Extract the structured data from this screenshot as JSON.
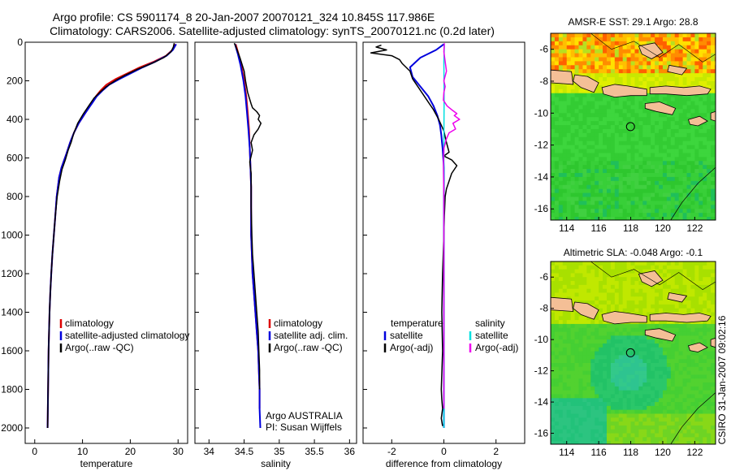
{
  "header": {
    "line1": "Argo profile: CS 5901174_8 20-Jan-2007 20070121_324 10.845S 117.986E",
    "line2": "Climatology: CARS2006. Satellite-adjusted climatology: synTS_20070121.nc (0.2d later)"
  },
  "side_text": "CSIRO 31-Jan-2007 09:02:16",
  "colors": {
    "climatology": "#dd0000",
    "satellite": "#0000dd",
    "argo": "#000000",
    "satellite_sal": "#00e0e0",
    "argo_sal_adj": "#ee00ee",
    "land": "#f4bf96"
  },
  "chart_data": [
    {
      "id": "temperature",
      "type": "line",
      "xlabel": "temperature",
      "ylabel": "",
      "xlim": [
        -2,
        32
      ],
      "ylim": [
        2080,
        0
      ],
      "y_reversed": true,
      "xticks": [
        0,
        10,
        20,
        30
      ],
      "yticks": [
        0,
        200,
        400,
        600,
        800,
        1000,
        1200,
        1400,
        1600,
        1800,
        2000
      ],
      "legend": {
        "placement": "lower-right",
        "entries": [
          {
            "label": "climatology",
            "series": "climatology"
          },
          {
            "label": "satellite-adjusted climatology",
            "series": "satellite-adjusted"
          },
          {
            "label": "Argo(..raw -QC)",
            "series": "argo"
          }
        ]
      },
      "series": [
        {
          "name": "climatology",
          "color_key": "climatology",
          "width": 2,
          "x": [
            29.5,
            28.8,
            27.5,
            25,
            22,
            19.5,
            17,
            15,
            13.8,
            12.8,
            11.8,
            10.5,
            9.2,
            8.2,
            7.4,
            6.6,
            5.6,
            5.1,
            4.6,
            4.3,
            4.0,
            3.7,
            3.45,
            3.25,
            3.1,
            3.0,
            2.9,
            2.85,
            2.8,
            2.75,
            2.7
          ],
          "y": [
            10,
            40,
            70,
            100,
            130,
            160,
            190,
            220,
            250,
            280,
            320,
            370,
            420,
            470,
            520,
            580,
            650,
            700,
            800,
            900,
            1000,
            1100,
            1200,
            1300,
            1400,
            1500,
            1600,
            1700,
            1800,
            1900,
            2000
          ]
        },
        {
          "name": "satellite-adjusted",
          "color_key": "satellite",
          "width": 2,
          "x": [
            29.6,
            28.9,
            27.6,
            25.3,
            22.6,
            20.2,
            17.8,
            15.6,
            14.2,
            13.0,
            11.9,
            10.5,
            9.2,
            8.2,
            7.4,
            6.6,
            5.6,
            5.1,
            4.6,
            4.3,
            4.0,
            3.7,
            3.45,
            3.25,
            3.1,
            3.0,
            2.9,
            2.85,
            2.8,
            2.75,
            2.7
          ],
          "y": [
            10,
            40,
            70,
            100,
            130,
            160,
            190,
            220,
            250,
            280,
            320,
            370,
            420,
            470,
            520,
            580,
            650,
            700,
            800,
            900,
            1000,
            1100,
            1200,
            1300,
            1400,
            1500,
            1600,
            1700,
            1800,
            1900,
            2000
          ]
        },
        {
          "name": "Argo(..raw -QC)",
          "color_key": "argo",
          "width": 1.5,
          "x": [
            29.2,
            29.0,
            28.5,
            27.0,
            24.5,
            21.5,
            19.0,
            16.8,
            15.0,
            13.6,
            12.4,
            11.3,
            10.2,
            9.0,
            8.2,
            7.6,
            7.0,
            6.4,
            5.7,
            5.2,
            4.7,
            4.3,
            4.0,
            3.7,
            3.45,
            3.25,
            3.1,
            3.0,
            2.9,
            2.85,
            2.8,
            2.75,
            2.7
          ],
          "y": [
            5,
            25,
            50,
            80,
            110,
            140,
            170,
            200,
            230,
            260,
            290,
            330,
            370,
            420,
            470,
            520,
            560,
            610,
            660,
            720,
            800,
            900,
            1000,
            1100,
            1200,
            1300,
            1400,
            1500,
            1600,
            1700,
            1800,
            1900,
            2000
          ]
        }
      ]
    },
    {
      "id": "salinity",
      "type": "line",
      "xlabel": "salinity",
      "ylabel": "",
      "xlim": [
        33.8,
        36.1
      ],
      "ylim": [
        2080,
        0
      ],
      "y_reversed": true,
      "xticks": [
        34,
        34.5,
        35,
        35.5,
        36
      ],
      "yticks": [
        0,
        200,
        400,
        600,
        800,
        1000,
        1200,
        1400,
        1600,
        1800,
        2000
      ],
      "legend": {
        "placement": "lower-right",
        "entries": [
          {
            "label": "climatology",
            "series": "climatology"
          },
          {
            "label": "satellite adj. clim.",
            "series": "satellite-adjusted"
          },
          {
            "label": "Argo(..raw -QC)",
            "series": "argo"
          }
        ]
      },
      "annotations": [
        "Argo AUSTRALIA",
        "PI: Susan Wijffels"
      ],
      "series": [
        {
          "name": "climatology",
          "color_key": "climatology",
          "width": 2,
          "x": [
            34.38,
            34.42,
            34.46,
            34.5,
            34.53,
            34.55,
            34.57,
            34.58,
            34.59,
            34.6,
            34.6,
            34.6,
            34.61,
            34.62,
            34.64,
            34.66,
            34.68,
            34.7,
            34.71,
            34.72,
            34.72
          ],
          "y": [
            10,
            60,
            120,
            200,
            280,
            360,
            450,
            550,
            650,
            750,
            850,
            1000,
            1100,
            1200,
            1300,
            1400,
            1500,
            1600,
            1700,
            1800,
            1900
          ]
        },
        {
          "name": "satellite-adjusted",
          "color_key": "satellite",
          "width": 2,
          "x": [
            34.37,
            34.41,
            34.45,
            34.49,
            34.52,
            34.54,
            34.56,
            34.58,
            34.59,
            34.6,
            34.6,
            34.6,
            34.61,
            34.62,
            34.64,
            34.66,
            34.68,
            34.7,
            34.71,
            34.72,
            34.72,
            34.73
          ],
          "y": [
            10,
            60,
            120,
            200,
            280,
            360,
            450,
            550,
            650,
            750,
            850,
            1000,
            1100,
            1200,
            1300,
            1400,
            1500,
            1600,
            1700,
            1800,
            1900,
            2000
          ]
        },
        {
          "name": "Argo(..raw -QC)",
          "color_key": "argo",
          "width": 1.5,
          "x": [
            34.36,
            34.4,
            34.44,
            34.5,
            34.52,
            34.55,
            34.6,
            34.62,
            34.68,
            34.72,
            34.7,
            34.74,
            34.7,
            34.64,
            34.6,
            34.62,
            34.58,
            34.6,
            34.6,
            34.6,
            34.61,
            34.62,
            34.64,
            34.66,
            34.68,
            34.7,
            34.71,
            34.72,
            34.72
          ],
          "y": [
            5,
            40,
            80,
            150,
            200,
            260,
            320,
            340,
            360,
            380,
            400,
            420,
            450,
            480,
            520,
            560,
            620,
            680,
            750,
            850,
            1000,
            1100,
            1200,
            1300,
            1400,
            1500,
            1600,
            1700,
            1800
          ]
        }
      ]
    },
    {
      "id": "difference",
      "type": "line",
      "xlabel": "difference from climatology",
      "ylabel": "",
      "xlim": [
        -3.1,
        3.1
      ],
      "ylim": [
        2080,
        0
      ],
      "y_reversed": true,
      "xticks": [
        -2,
        0,
        2
      ],
      "yticks": [
        0,
        200,
        400,
        600,
        800,
        1000,
        1200,
        1400,
        1600,
        1800,
        2000
      ],
      "legend": {
        "placement": "lower-center",
        "columns": [
          {
            "heading": "temperature",
            "entries": [
              {
                "label": "satellite",
                "series": "T satellite"
              },
              {
                "label": "Argo(-adj)",
                "series": "T Argo(-adj)"
              }
            ]
          },
          {
            "heading": "salinity",
            "entries": [
              {
                "label": "satellite",
                "series": "S satellite"
              },
              {
                "label": "Argo(-adj)",
                "series": "S Argo(-adj)"
              }
            ]
          }
        ]
      },
      "series": [
        {
          "name": "T satellite",
          "color_key": "satellite",
          "width": 2,
          "x": [
            0.0,
            -0.3,
            -0.9,
            -1.3,
            -1.2,
            -0.9,
            -0.6,
            -0.4,
            -0.25,
            -0.15,
            -0.1,
            -0.05,
            0,
            0,
            0,
            0
          ],
          "y": [
            10,
            40,
            80,
            130,
            180,
            230,
            280,
            330,
            380,
            430,
            480,
            550,
            650,
            800,
            1200,
            2000
          ]
        },
        {
          "name": "T Argo(-adj)",
          "color_key": "argo",
          "width": 1.5,
          "x": [
            -2.4,
            -2.6,
            -2.2,
            -2.8,
            -2.0,
            -1.7,
            -1.6,
            -1.3,
            -1.2,
            -1.0,
            -0.8,
            -0.6,
            -0.4,
            -0.2,
            0.0,
            0.1,
            0.2,
            0.0,
            0.3,
            0.5,
            0.3,
            0.2,
            0.1,
            0.05,
            0.02,
            0,
            -0.05,
            -0.08,
            -0.05,
            -0.1,
            -0.08,
            -0.05,
            -0.1,
            -0.05
          ],
          "y": [
            15,
            25,
            40,
            55,
            70,
            90,
            110,
            150,
            190,
            230,
            270,
            310,
            350,
            400,
            460,
            520,
            570,
            590,
            610,
            640,
            680,
            720,
            760,
            800,
            900,
            1000,
            1200,
            1400,
            1600,
            1800,
            1850,
            1900,
            1950,
            1990
          ]
        },
        {
          "name": "S satellite",
          "color_key": "satellite_sal",
          "width": 1.5,
          "x": [
            0.02,
            0.0,
            0.01,
            0.0,
            0.0,
            0.0,
            0.0,
            0.0
          ],
          "y": [
            10,
            100,
            300,
            500,
            800,
            1200,
            1600,
            2000
          ]
        },
        {
          "name": "S Argo(-adj)",
          "color_key": "argo_sal_adj",
          "width": 1.5,
          "x": [
            0.02,
            0.0,
            0.05,
            0.1,
            0.0,
            0.05,
            0.0,
            -0.02,
            0.12,
            0.3,
            0.5,
            0.4,
            0.6,
            0.35,
            0.45,
            0.2,
            0.1,
            0.0,
            -0.02,
            0.0,
            0.0,
            0.0,
            0.0
          ],
          "y": [
            5,
            50,
            100,
            150,
            200,
            230,
            260,
            300,
            330,
            350,
            370,
            380,
            400,
            420,
            450,
            470,
            500,
            550,
            650,
            800,
            1100,
            1500,
            1900
          ]
        }
      ]
    },
    {
      "id": "amsre_sst_map",
      "type": "heatmap",
      "title": "AMSR-E SST: 29.1 Argo: 28.8",
      "xlim": [
        113,
        123.3
      ],
      "ylim": [
        -16.7,
        -5
      ],
      "xticks": [
        114,
        116,
        118,
        120,
        122
      ],
      "yticks": [
        -6,
        -8,
        -10,
        -12,
        -14,
        -16
      ],
      "float_position": {
        "lon": 117.986,
        "lat": -10.845
      }
    },
    {
      "id": "altimetric_sla_map",
      "type": "heatmap",
      "title": "Altimetric SLA: -0.048 Argo: -0.1",
      "xlim": [
        113,
        123.3
      ],
      "ylim": [
        -16.7,
        -5
      ],
      "xticks": [
        114,
        116,
        118,
        120,
        122
      ],
      "yticks": [
        -6,
        -8,
        -10,
        -12,
        -14,
        -16
      ],
      "float_position": {
        "lon": 117.986,
        "lat": -10.845
      }
    }
  ]
}
